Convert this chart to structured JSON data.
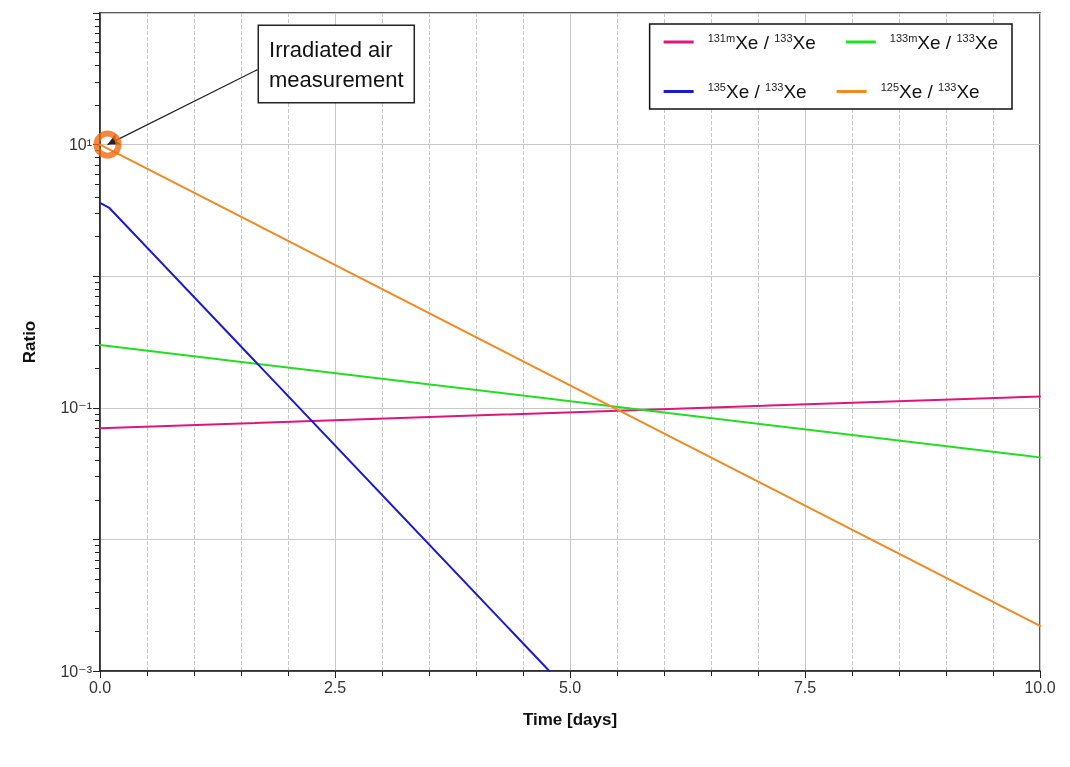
{
  "chart_data": {
    "type": "line",
    "xlabel": "Time [days]",
    "ylabel": "Ratio",
    "xlim": [
      0,
      10
    ],
    "xticks": [
      {
        "value": 0,
        "label": "0.0"
      },
      2.5,
      {
        "value": 5,
        "label": "5.0"
      },
      7.5,
      {
        "value": 10,
        "label": "10.0"
      }
    ],
    "ylim": [
      0.001,
      100
    ],
    "yticks": [
      {
        "value": 0.001,
        "label": "10⁻³"
      },
      {
        "value": 0.01,
        "label": null
      },
      {
        "value": 0.1,
        "label": "10⁻¹"
      },
      {
        "value": 1,
        "label": null
      },
      {
        "value": 10,
        "label": "10¹"
      },
      {
        "value": 100,
        "label": null
      }
    ],
    "log": "y",
    "grid": true,
    "legend": "top right",
    "marker": "none",
    "line_style": "solid",
    "annotations": [
      {
        "text": "Irradiated air measurement",
        "x": 0.08,
        "y": 10
      }
    ],
    "series": [
      {
        "name": "$^{131m}$Xe / $^{133}$Xe",
        "color": "#e0157a",
        "x": [
          0,
          10
        ],
        "values": [
          0.07,
          0.122
        ]
      },
      {
        "name": "$^{133m}$Xe / $^{133}$Xe",
        "color": "#22dd22",
        "x": [
          0,
          10
        ],
        "values": [
          0.3,
          0.042
        ]
      },
      {
        "name": "$^{135}$Xe / $^{133}$Xe",
        "color": "#1a1acc",
        "x": [
          0,
          0.1,
          4.78
        ],
        "values": [
          3.6,
          3.3,
          0.001
        ]
      },
      {
        "name": "$^{125}$Xe / $^{133}$Xe",
        "color": "#f08a24",
        "x": [
          0,
          10
        ],
        "values": [
          10,
          0.0022
        ]
      },
      {
        "type": "scatter",
        "marker": "circle",
        "color": "#f26a10",
        "x": [
          0.08
        ],
        "values": [
          10
        ]
      }
    ]
  }
}
